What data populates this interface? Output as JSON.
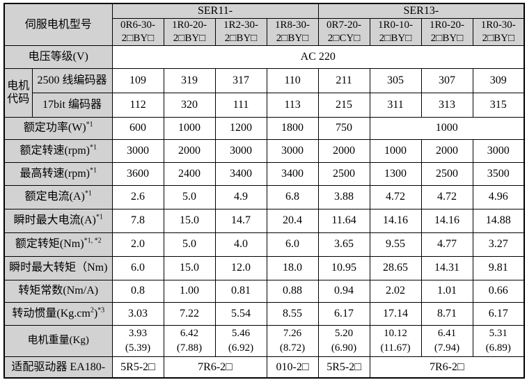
{
  "colors": {
    "header_bg": "#d2d2d2",
    "cell_bg": "#ffffff",
    "border": "#000000",
    "text": "#000000"
  },
  "table": {
    "corner_label": "伺服电机型号",
    "series": [
      {
        "name": "SER11-",
        "span": 4
      },
      {
        "name": "SER13-",
        "span": 4
      }
    ],
    "models": [
      {
        "line1": "0R6-30-",
        "line2": "2□BY□"
      },
      {
        "line1": "1R0-20-",
        "line2": "2□BY□"
      },
      {
        "line1": "1R2-30-",
        "line2": "2□BY□"
      },
      {
        "line1": "1R8-30-",
        "line2": "2□BY□"
      },
      {
        "line1": "0R7-20-",
        "line2": "2□CY□"
      },
      {
        "line1": "1R0-10-",
        "line2": "2□BY□"
      },
      {
        "line1": "1R0-20-",
        "line2": "2□BY□"
      },
      {
        "line1": "1R0-30-",
        "line2": "2□BY□"
      }
    ],
    "rows": [
      {
        "key": "voltage",
        "label": [
          {
            "t": "电压等级(V)"
          }
        ],
        "cells": [
          {
            "v": "AC 220",
            "span": 8
          }
        ]
      },
      {
        "key": "enc2500",
        "group": {
          "lines": [
            "电机",
            "代码"
          ],
          "rowspan": 2
        },
        "sublabel": "2500 线编码器",
        "cells": [
          {
            "v": "109"
          },
          {
            "v": "319"
          },
          {
            "v": "317"
          },
          {
            "v": "110"
          },
          {
            "v": "211"
          },
          {
            "v": "305"
          },
          {
            "v": "307"
          },
          {
            "v": "309"
          }
        ]
      },
      {
        "key": "enc17",
        "sublabel": "17bit 编码器",
        "cells": [
          {
            "v": "112"
          },
          {
            "v": "320"
          },
          {
            "v": "111"
          },
          {
            "v": "113"
          },
          {
            "v": "215"
          },
          {
            "v": "311"
          },
          {
            "v": "313"
          },
          {
            "v": "315"
          }
        ]
      },
      {
        "key": "power",
        "label": [
          {
            "t": "额定功率(W)"
          },
          {
            "t": "*1",
            "sup": true
          }
        ],
        "cells": [
          {
            "v": "600"
          },
          {
            "v": "1000"
          },
          {
            "v": "1200"
          },
          {
            "v": "1800"
          },
          {
            "v": "750"
          },
          {
            "v": "1000",
            "span": 3
          }
        ]
      },
      {
        "key": "rated-speed",
        "label": [
          {
            "t": "额定转速(rpm)"
          },
          {
            "t": "*1",
            "sup": true
          }
        ],
        "cells": [
          {
            "v": "3000"
          },
          {
            "v": "2000"
          },
          {
            "v": "3000"
          },
          {
            "v": "3000"
          },
          {
            "v": "2000"
          },
          {
            "v": "1000"
          },
          {
            "v": "2000"
          },
          {
            "v": "3000"
          }
        ]
      },
      {
        "key": "max-speed",
        "label": [
          {
            "t": "最高转速(rpm)"
          },
          {
            "t": "*1",
            "sup": true
          }
        ],
        "cells": [
          {
            "v": "3600"
          },
          {
            "v": "2400"
          },
          {
            "v": "3400"
          },
          {
            "v": "3400"
          },
          {
            "v": "2500"
          },
          {
            "v": "1300"
          },
          {
            "v": "2500"
          },
          {
            "v": "3500"
          }
        ]
      },
      {
        "key": "rated-current",
        "label": [
          {
            "t": "额定电流(A)"
          },
          {
            "t": "*1",
            "sup": true
          }
        ],
        "cells": [
          {
            "v": "2.6"
          },
          {
            "v": "5.0"
          },
          {
            "v": "4.9"
          },
          {
            "v": "6.8"
          },
          {
            "v": "3.88"
          },
          {
            "v": "4.72"
          },
          {
            "v": "4.72"
          },
          {
            "v": "4.96"
          }
        ]
      },
      {
        "key": "max-current",
        "label": [
          {
            "t": "瞬时最大电流(A)"
          },
          {
            "t": "*1",
            "sup": true
          }
        ],
        "cells": [
          {
            "v": "7.8"
          },
          {
            "v": "15.0"
          },
          {
            "v": "14.7"
          },
          {
            "v": "20.4"
          },
          {
            "v": "11.64"
          },
          {
            "v": "14.16"
          },
          {
            "v": "14.16"
          },
          {
            "v": "14.88"
          }
        ]
      },
      {
        "key": "rated-torque",
        "label": [
          {
            "t": "额定转矩(Nm)"
          },
          {
            "t": "*1, *2",
            "sup": true
          }
        ],
        "cells": [
          {
            "v": "2.0"
          },
          {
            "v": "5.0"
          },
          {
            "v": "4.0"
          },
          {
            "v": "6.0"
          },
          {
            "v": "3.65"
          },
          {
            "v": "9.55"
          },
          {
            "v": "4.77"
          },
          {
            "v": "3.27"
          }
        ]
      },
      {
        "key": "max-torque",
        "label": [
          {
            "t": "瞬时最大转矩（Nm)"
          }
        ],
        "cells": [
          {
            "v": "6.0"
          },
          {
            "v": "15.0"
          },
          {
            "v": "12.0"
          },
          {
            "v": "18.0"
          },
          {
            "v": "10.95"
          },
          {
            "v": "28.65"
          },
          {
            "v": "14.31"
          },
          {
            "v": "9.81"
          }
        ]
      },
      {
        "key": "torque-const",
        "label": [
          {
            "t": "转矩常数(Nm/A)"
          }
        ],
        "cells": [
          {
            "v": "0.8"
          },
          {
            "v": "1.00"
          },
          {
            "v": "0.81"
          },
          {
            "v": "0.88"
          },
          {
            "v": "0.94"
          },
          {
            "v": "2.02"
          },
          {
            "v": "1.01"
          },
          {
            "v": "0.66"
          }
        ]
      },
      {
        "key": "inertia",
        "label": [
          {
            "t": "转动惯量(Kg.cm"
          },
          {
            "t": "2",
            "sup": true
          },
          {
            "t": ")"
          },
          {
            "t": "*3",
            "sup": true
          }
        ],
        "cells": [
          {
            "v": "3.03"
          },
          {
            "v": "7.22"
          },
          {
            "v": "5.54"
          },
          {
            "v": "8.55"
          },
          {
            "v": "6.17"
          },
          {
            "v": "17.14"
          },
          {
            "v": "8.71"
          },
          {
            "v": "6.17"
          }
        ]
      },
      {
        "key": "weight",
        "label": [
          {
            "t": "电机重量(Kg)"
          }
        ],
        "cells": [
          {
            "v": "3.93",
            "v2": "(5.39)"
          },
          {
            "v": "6.42",
            "v2": "(7.88)"
          },
          {
            "v": "5.46",
            "v2": "(6.92)"
          },
          {
            "v": "7.26",
            "v2": "(8.72)"
          },
          {
            "v": "5.20",
            "v2": "(6.90)"
          },
          {
            "v": "10.12",
            "v2": "(11.67)"
          },
          {
            "v": "6.41",
            "v2": "(7.94)"
          },
          {
            "v": "5.31",
            "v2": "(6.89)"
          }
        ]
      },
      {
        "key": "driver",
        "label": [
          {
            "t": "适配驱动器 EA180-"
          }
        ],
        "cells": [
          {
            "v": "5R5-2□"
          },
          {
            "v": "7R6-2□",
            "span": 2
          },
          {
            "v": "010-2□"
          },
          {
            "v": "5R5-2□"
          },
          {
            "v": "7R6-2□",
            "span": 3
          }
        ]
      }
    ]
  }
}
